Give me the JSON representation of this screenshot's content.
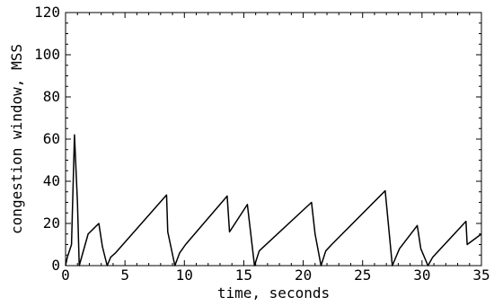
{
  "chart_data": {
    "type": "line",
    "title": "",
    "xlabel": "time, seconds",
    "ylabel": "congestion window, MSS",
    "xlim": [
      0,
      35
    ],
    "ylim": [
      0,
      120
    ],
    "x_ticks": [
      0,
      5,
      10,
      15,
      20,
      25,
      30,
      35
    ],
    "y_ticks": [
      0,
      20,
      40,
      60,
      80,
      100,
      120
    ],
    "grid": false,
    "legend": "none",
    "line_color": "#000000",
    "series": [
      {
        "x": [
          0,
          0.15,
          0.5,
          0.75,
          1.0,
          1.15,
          1.9,
          2.8,
          3.1,
          3.5,
          3.8,
          4.2,
          8.5,
          8.6,
          9.2,
          9.6,
          10.1,
          13.6,
          13.8,
          15.3,
          15.9,
          16.3,
          20.7,
          21.0,
          21.5,
          21.9,
          22.4,
          26.9,
          27.5,
          28.1,
          29.6,
          29.9,
          30.5,
          30.9,
          33.7,
          33.8,
          35.0
        ],
        "y": [
          0,
          4,
          10,
          62,
          30,
          0,
          15,
          20,
          9,
          0,
          4,
          6,
          33.5,
          16,
          0,
          6,
          10,
          33,
          16,
          29,
          0,
          7,
          30,
          15,
          0,
          7,
          10,
          35.5,
          0,
          8,
          19,
          8,
          0,
          4,
          21,
          10,
          15
        ]
      }
    ]
  }
}
